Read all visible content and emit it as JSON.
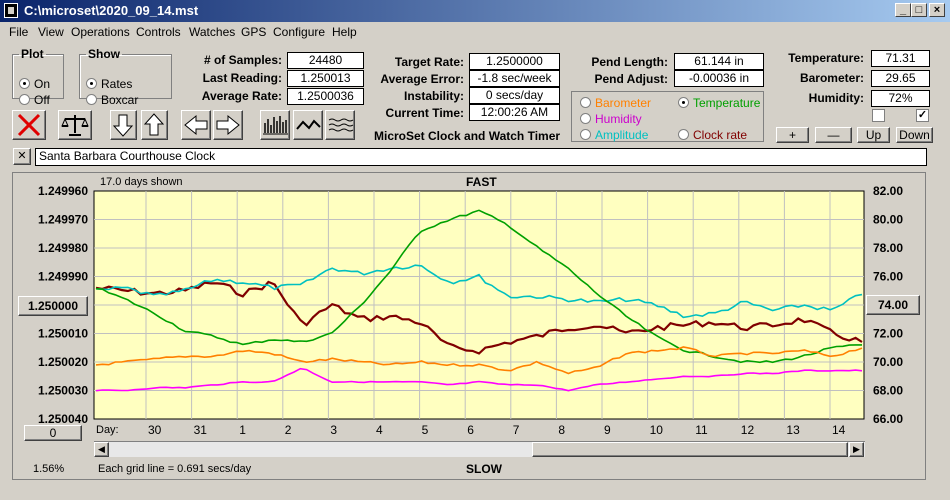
{
  "window": {
    "title": "C:\\microset\\2020_09_14.mst"
  },
  "menu": [
    "File",
    "View",
    "Operations",
    "Controls",
    "Watches",
    "GPS",
    "Configure",
    "Help"
  ],
  "plot": {
    "title": "Plot",
    "on": "On",
    "off": "Off",
    "selected": "On"
  },
  "show": {
    "title": "Show",
    "rates": "Rates",
    "boxcar": "Boxcar",
    "selected": "Rates"
  },
  "stats": {
    "samples_label": "# of Samples:",
    "samples": "24480",
    "last_label": "Last Reading:",
    "last": "1.250013",
    "avg_rate_label": "Average Rate:",
    "avg_rate": "1.2500036",
    "target_label": "Target Rate:",
    "target": "1.2500000",
    "avg_err_label": "Average Error:",
    "avg_err": "-1.8 sec/week",
    "instab_label": "Instability:",
    "instab": "0 secs/day",
    "time_label": "Current Time:",
    "time": "12:00:26 AM",
    "pend_len_label": "Pend Length:",
    "pend_len": "61.144 in",
    "pend_adj_label": "Pend Adjust:",
    "pend_adj": "-0.00036 in",
    "temp_label": "Temperature:",
    "temp": "71.31",
    "baro_label": "Barometer:",
    "baro": "29.65",
    "hum_label": "Humidity:",
    "hum": "72%"
  },
  "app_title": "MicroSet Clock and Watch Timer",
  "series_select": {
    "items": [
      {
        "label": "Barometer",
        "color": "#ff8000",
        "selected": false
      },
      {
        "label": "Temperature",
        "color": "#00a000",
        "selected": true
      },
      {
        "label": "Humidity",
        "color": "#cc00cc",
        "selected": false
      },
      {
        "label": "Amplitude",
        "color": "#00c0c0",
        "selected": false
      },
      {
        "label": "Clock rate",
        "color": "#800000",
        "selected": false
      }
    ]
  },
  "right_buttons": {
    "plus": "+",
    "minus": "—",
    "up": "Up",
    "down": "Down"
  },
  "checkboxes": {
    "first": "",
    "second": "✓"
  },
  "watch_name": "Santa Barbara Courthouse Clock",
  "watch_close": "✕",
  "chart_data": {
    "type": "line",
    "days_shown": "17.0 days shown",
    "top_label": "FAST",
    "bottom_label": "SLOW",
    "grid_note": "Each grid line = 0.691 secs/day",
    "pct": "1.56%",
    "day_label": "Day:",
    "x_ticks": [
      "30",
      "31",
      "1",
      "2",
      "3",
      "4",
      "5",
      "6",
      "7",
      "8",
      "9",
      "10",
      "11",
      "12",
      "13",
      "14"
    ],
    "y_left_ticks": [
      "1.249960",
      "1.249970",
      "1.249980",
      "1.249990",
      "1.250000",
      "1.250010",
      "1.250020",
      "1.250030",
      "1.250040"
    ],
    "y_left_center_button": "1.250000",
    "y_left_zero_button": "0",
    "y_right_ticks": [
      "82.00",
      "80.00",
      "78.00",
      "76.00",
      "74.00",
      "72.00",
      "70.00",
      "68.00",
      "66.00"
    ],
    "y_right_center_button": "74.00",
    "xlim": [
      29.2,
      15.0
    ],
    "series": [
      {
        "color": "#800000",
        "values": [
          1.249994,
          1.249995,
          1.249996,
          1.249995,
          1.249992,
          1.249996,
          1.249992,
          1.250007,
          1.25,
          1.250005,
          1.250004,
          1.250006,
          1.250015,
          1.250016,
          1.250013,
          1.250011,
          1.250008,
          1.250007,
          1.25001,
          1.250008,
          1.250007,
          1.250006,
          1.250008,
          1.250007,
          1.250005,
          1.25001,
          1.250013
        ]
      },
      {
        "color": "#00c0c0",
        "values": [
          1.249995,
          1.249994,
          1.249997,
          1.249995,
          1.249991,
          1.249992,
          1.249994,
          1.249993,
          1.249987,
          1.249989,
          1.249987,
          1.249986,
          1.249992,
          1.24999,
          1.249997,
          1.249997,
          1.249998,
          1.249999,
          1.249998,
          1.25,
          1.250004,
          1.250003,
          1.249999,
          1.250002,
          1.25,
          1.250002,
          1.249996
        ]
      },
      {
        "color": "#00a000",
        "values": [
          1.249994,
          1.249998,
          1.250003,
          1.250009,
          1.250011,
          1.250014,
          1.250012,
          1.250013,
          1.25001,
          1.25,
          1.249988,
          1.249974,
          1.24997,
          1.249967,
          1.249972,
          1.24998,
          1.249987,
          1.249996,
          1.250004,
          1.250011,
          1.250016,
          1.250018,
          1.25002,
          1.25002,
          1.250018,
          1.250015,
          1.250014
        ]
      },
      {
        "color": "#ff8000",
        "values": [
          1.250021,
          1.25002,
          1.250019,
          1.250018,
          1.250018,
          1.250016,
          1.250017,
          1.25002,
          1.250019,
          1.25002,
          1.250021,
          1.25002,
          1.250021,
          1.250021,
          1.250023,
          1.25002,
          1.250024,
          1.250022,
          1.250017,
          1.250016,
          1.250015,
          1.250018,
          1.250017,
          1.250017,
          1.250016,
          1.250018,
          1.250015
        ]
      },
      {
        "color": "#ff00ff",
        "values": [
          1.25003,
          1.25003,
          1.250029,
          1.250029,
          1.250028,
          1.250027,
          1.250027,
          1.250022,
          1.250027,
          1.250027,
          1.250027,
          1.250027,
          1.250028,
          1.250027,
          1.250028,
          1.250028,
          1.25003,
          1.250028,
          1.250027,
          1.250026,
          1.250025,
          1.250025,
          1.250024,
          1.250024,
          1.250023,
          1.250023,
          1.250023
        ]
      }
    ],
    "ylim": [
      1.24996,
      1.25004
    ]
  }
}
